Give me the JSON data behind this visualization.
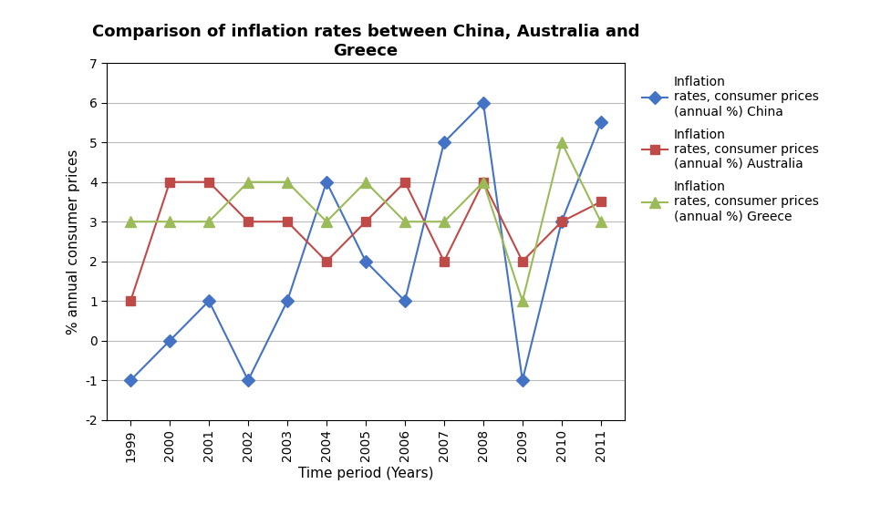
{
  "title": "Comparison of inflation rates between China, Australia and\nGreece",
  "xlabel": "Time period (Years)",
  "ylabel": "% annual consumer prices",
  "years": [
    1999,
    2000,
    2001,
    2002,
    2003,
    2004,
    2005,
    2006,
    2007,
    2008,
    2009,
    2010,
    2011
  ],
  "china": [
    -1,
    0,
    1,
    -1,
    1,
    4,
    2,
    1,
    5,
    6,
    -1,
    3,
    5.5
  ],
  "australia": [
    1,
    4,
    4,
    3,
    3,
    2,
    3,
    4,
    2,
    4,
    2,
    3,
    3.5
  ],
  "greece": [
    3,
    3,
    3,
    4,
    4,
    3,
    4,
    3,
    3,
    4,
    1,
    5,
    3
  ],
  "china_color": "#4472C4",
  "australia_color": "#BE4B48",
  "greece_color": "#9BBB59",
  "ylim": [
    -2,
    7
  ],
  "yticks": [
    -2,
    -1,
    0,
    1,
    2,
    3,
    4,
    5,
    6,
    7
  ],
  "legend_china": "Inflation\nrates, consumer prices\n(annual %) China",
  "legend_australia": "Inflation\nrates, consumer prices\n(annual %) Australia",
  "legend_greece": "Inflation\nrates, consumer prices\n(annual %) Greece",
  "background_color": "#FFFFFF",
  "title_fontsize": 13,
  "axis_label_fontsize": 11,
  "tick_fontsize": 10,
  "legend_fontsize": 10
}
